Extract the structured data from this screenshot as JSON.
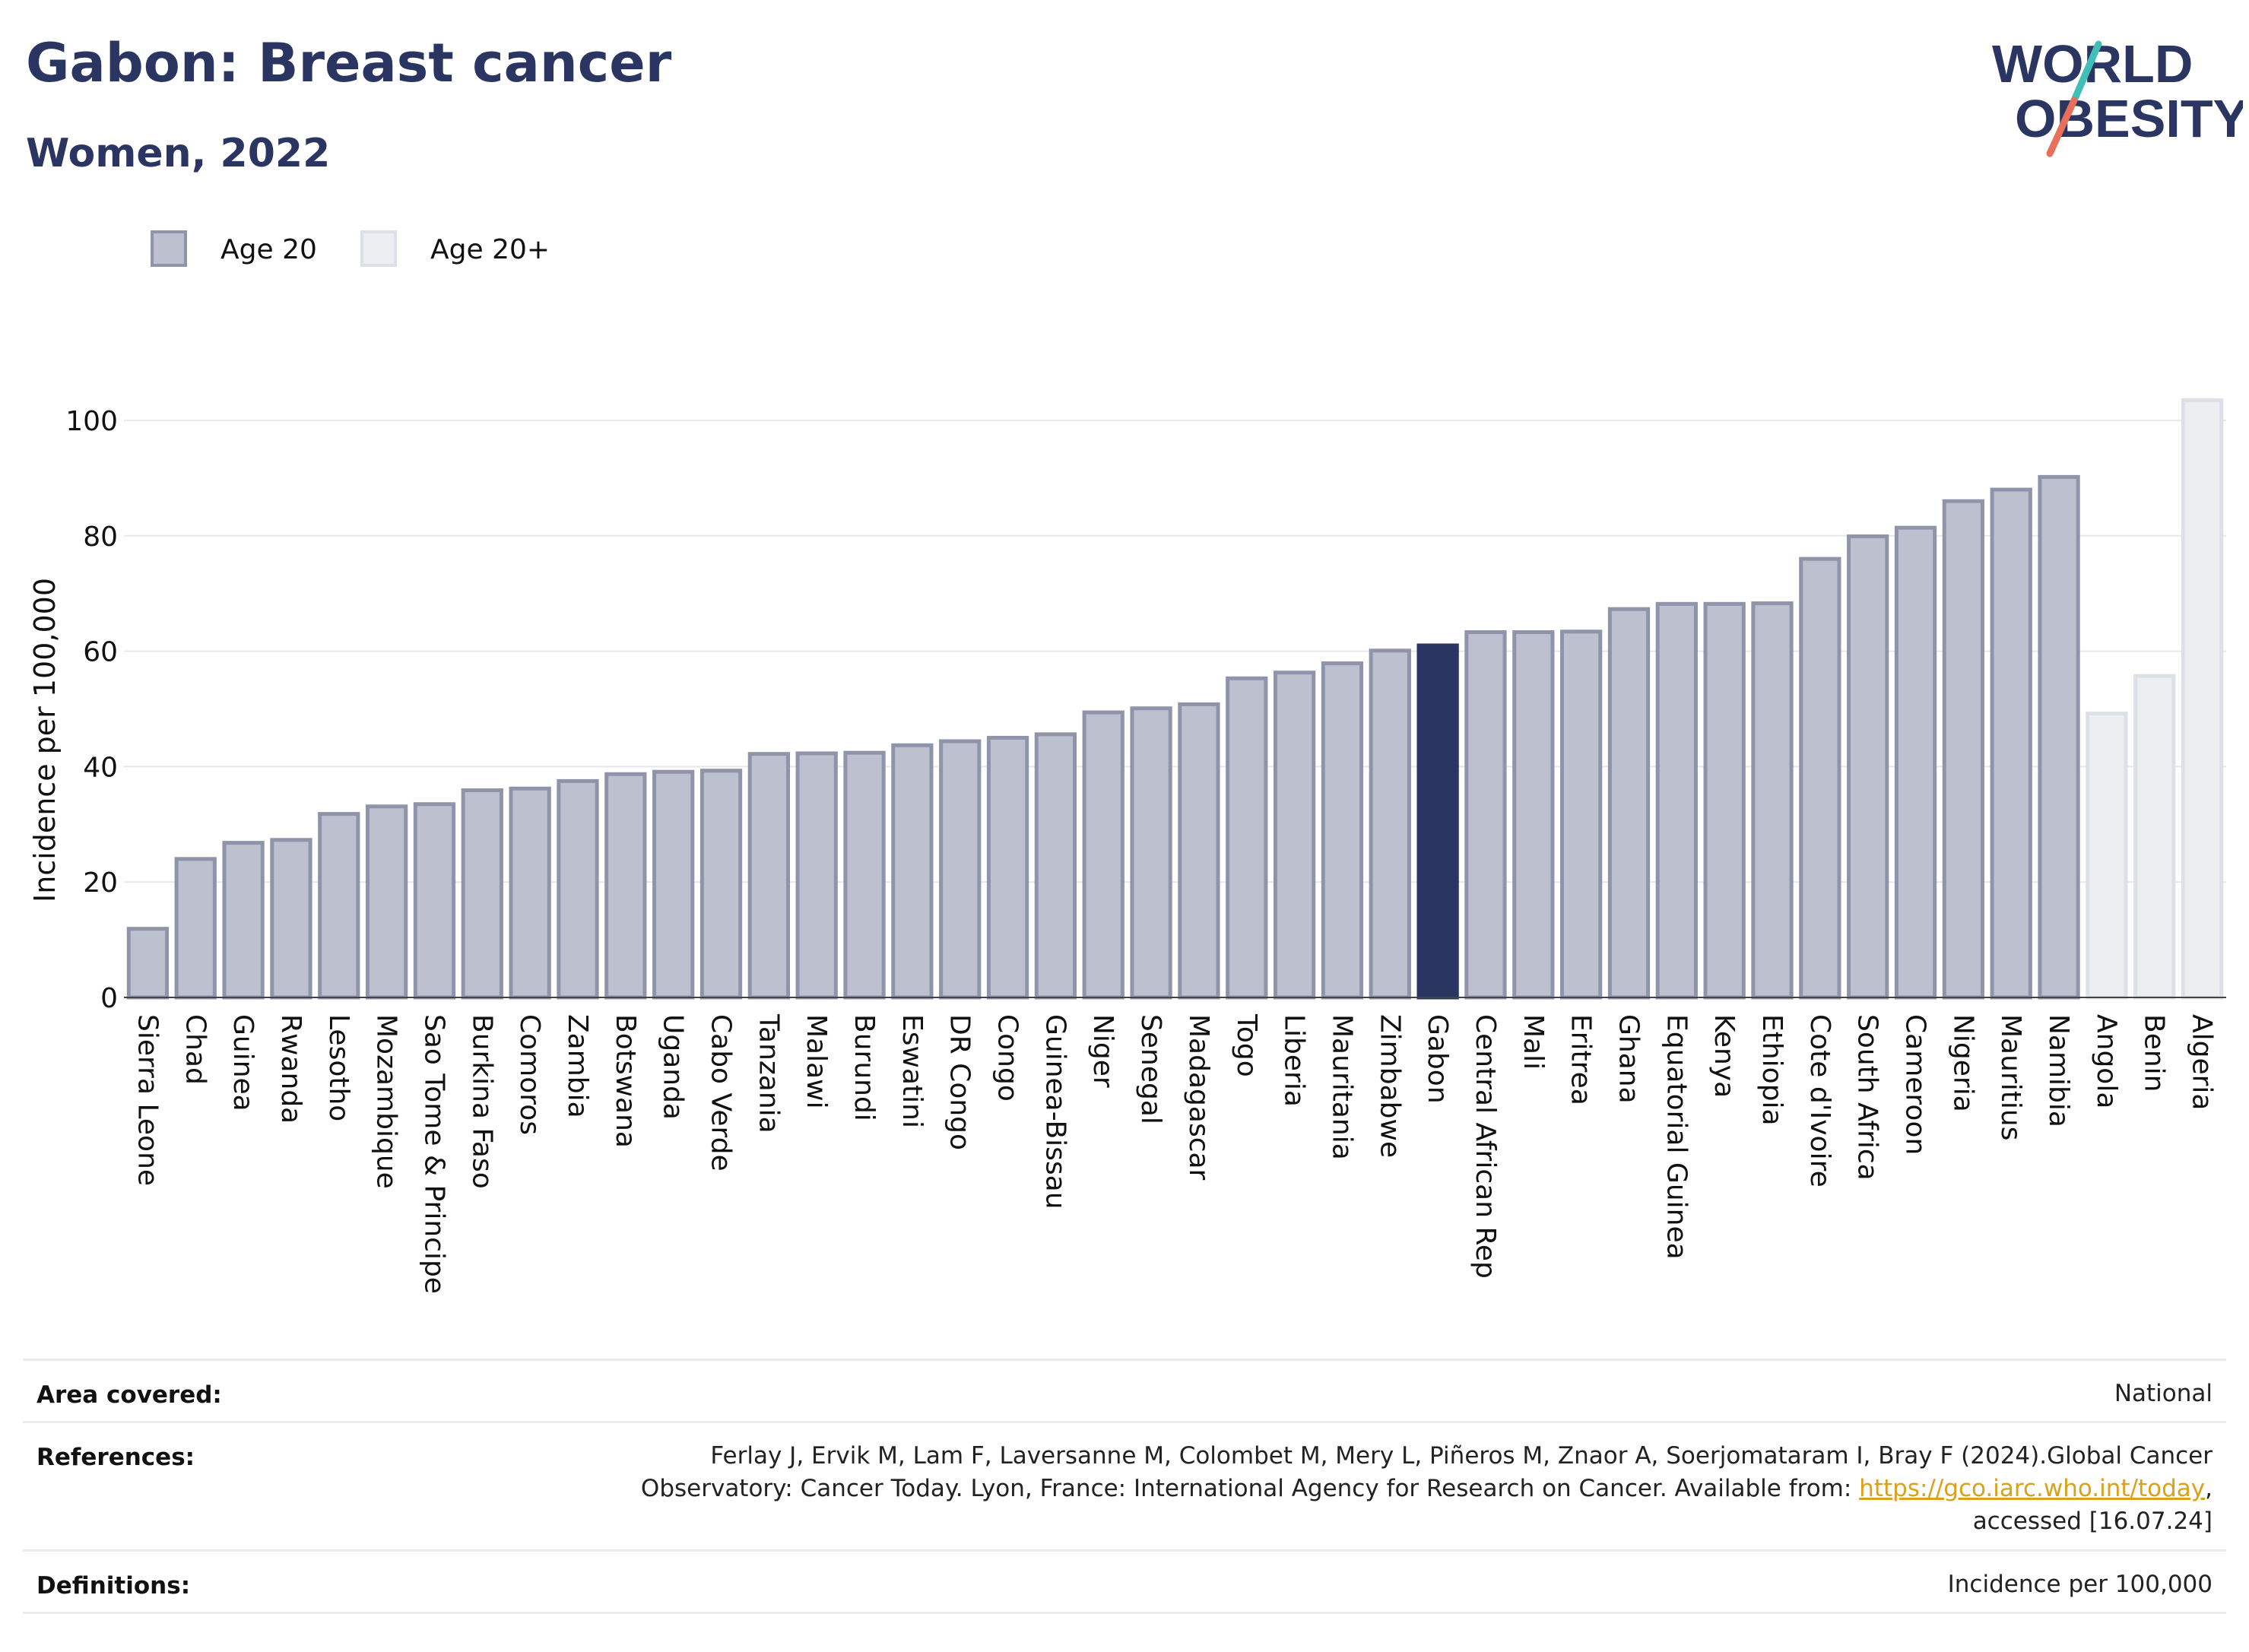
{
  "header": {
    "title": "Gabon: Breast cancer",
    "subtitle": "Women, 2022"
  },
  "logo": {
    "line1": "WORLD",
    "line2": "OBESITY",
    "colors": {
      "text": "#2b3561",
      "slash_teal": "#3fbfb8",
      "slash_coral": "#e8705a"
    }
  },
  "colors": {
    "age20_fill": "#bdc0ce",
    "age20_stroke": "#8f94ab",
    "age20plus_fill": "#eceef2",
    "age20plus_stroke": "#dde0e6",
    "highlight": "#2b3561",
    "grid": "#e6e8ec",
    "axis_text": "#111111"
  },
  "chart_data": {
    "type": "bar",
    "title": "Gabon: Breast cancer",
    "subtitle": "Women, 2022",
    "ylabel": "Incidence per 100,000",
    "ylim": [
      0,
      105
    ],
    "yticks": [
      0,
      20,
      40,
      60,
      80,
      100
    ],
    "grid": true,
    "legend_position": "top-left",
    "highlight": "Gabon",
    "series": [
      {
        "name": "Age 20",
        "color": "#bdc0ce"
      },
      {
        "name": "Age 20+",
        "color": "#eceef2"
      }
    ],
    "bars": [
      {
        "category": "Sierra Leone",
        "value": 11.9,
        "series": "Age 20"
      },
      {
        "category": "Chad",
        "value": 24.0,
        "series": "Age 20"
      },
      {
        "category": "Guinea",
        "value": 26.8,
        "series": "Age 20"
      },
      {
        "category": "Rwanda",
        "value": 27.3,
        "series": "Age 20"
      },
      {
        "category": "Lesotho",
        "value": 31.8,
        "series": "Age 20"
      },
      {
        "category": "Mozambique",
        "value": 33.1,
        "series": "Age 20"
      },
      {
        "category": "Sao Tome & Principe",
        "value": 33.5,
        "series": "Age 20"
      },
      {
        "category": "Burkina Faso",
        "value": 35.9,
        "series": "Age 20"
      },
      {
        "category": "Comoros",
        "value": 36.2,
        "series": "Age 20"
      },
      {
        "category": "Zambia",
        "value": 37.5,
        "series": "Age 20"
      },
      {
        "category": "Botswana",
        "value": 38.7,
        "series": "Age 20"
      },
      {
        "category": "Uganda",
        "value": 39.1,
        "series": "Age 20"
      },
      {
        "category": "Cabo Verde",
        "value": 39.3,
        "series": "Age 20"
      },
      {
        "category": "Tanzania",
        "value": 42.2,
        "series": "Age 20"
      },
      {
        "category": "Malawi",
        "value": 42.3,
        "series": "Age 20"
      },
      {
        "category": "Burundi",
        "value": 42.4,
        "series": "Age 20"
      },
      {
        "category": "Eswatini",
        "value": 43.7,
        "series": "Age 20"
      },
      {
        "category": "DR Congo",
        "value": 44.4,
        "series": "Age 20"
      },
      {
        "category": "Congo",
        "value": 45.0,
        "series": "Age 20"
      },
      {
        "category": "Guinea-Bissau",
        "value": 45.6,
        "series": "Age 20"
      },
      {
        "category": "Niger",
        "value": 49.4,
        "series": "Age 20"
      },
      {
        "category": "Senegal",
        "value": 50.1,
        "series": "Age 20"
      },
      {
        "category": "Madagascar",
        "value": 50.8,
        "series": "Age 20"
      },
      {
        "category": "Togo",
        "value": 55.3,
        "series": "Age 20"
      },
      {
        "category": "Liberia",
        "value": 56.3,
        "series": "Age 20"
      },
      {
        "category": "Mauritania",
        "value": 57.9,
        "series": "Age 20"
      },
      {
        "category": "Zimbabwe",
        "value": 60.1,
        "series": "Age 20"
      },
      {
        "category": "Gabon",
        "value": 61.0,
        "series": "Age 20"
      },
      {
        "category": "Central African Rep",
        "value": 63.3,
        "series": "Age 20"
      },
      {
        "category": "Mali",
        "value": 63.3,
        "series": "Age 20"
      },
      {
        "category": "Eritrea",
        "value": 63.4,
        "series": "Age 20"
      },
      {
        "category": "Ghana",
        "value": 67.3,
        "series": "Age 20"
      },
      {
        "category": "Equatorial Guinea",
        "value": 68.2,
        "series": "Age 20"
      },
      {
        "category": "Kenya",
        "value": 68.2,
        "series": "Age 20"
      },
      {
        "category": "Ethiopia",
        "value": 68.3,
        "series": "Age 20"
      },
      {
        "category": "Cote d'Ivoire",
        "value": 76.0,
        "series": "Age 20"
      },
      {
        "category": "South Africa",
        "value": 79.9,
        "series": "Age 20"
      },
      {
        "category": "Cameroon",
        "value": 81.4,
        "series": "Age 20"
      },
      {
        "category": "Nigeria",
        "value": 86.0,
        "series": "Age 20"
      },
      {
        "category": "Mauritius",
        "value": 88.0,
        "series": "Age 20"
      },
      {
        "category": "Namibia",
        "value": 90.2,
        "series": "Age 20"
      },
      {
        "category": "Angola",
        "value": 49.2,
        "series": "Age 20+"
      },
      {
        "category": "Benin",
        "value": 55.7,
        "series": "Age 20+"
      },
      {
        "category": "Algeria",
        "value": 103.5,
        "series": "Age 20+"
      }
    ]
  },
  "meta": {
    "area_label": "Area covered:",
    "area_value": "National",
    "references_label": "References:",
    "references_line1": "Ferlay J, Ervik M, Lam F, Laversanne M, Colombet M, Mery L, Piñeros M, Znaor A, Soerjomataram I, Bray F (2024).Global Cancer",
    "references_line2_pre": "Observatory: Cancer Today. Lyon, France: International Agency for Research on Cancer. Available from: ",
    "references_link": "https://gco.iarc.who.int/today",
    "references_line2_post": ",",
    "references_line3": "accessed [16.07.24]",
    "definitions_label": "Definitions:",
    "definitions_value": "Incidence per 100,000"
  }
}
